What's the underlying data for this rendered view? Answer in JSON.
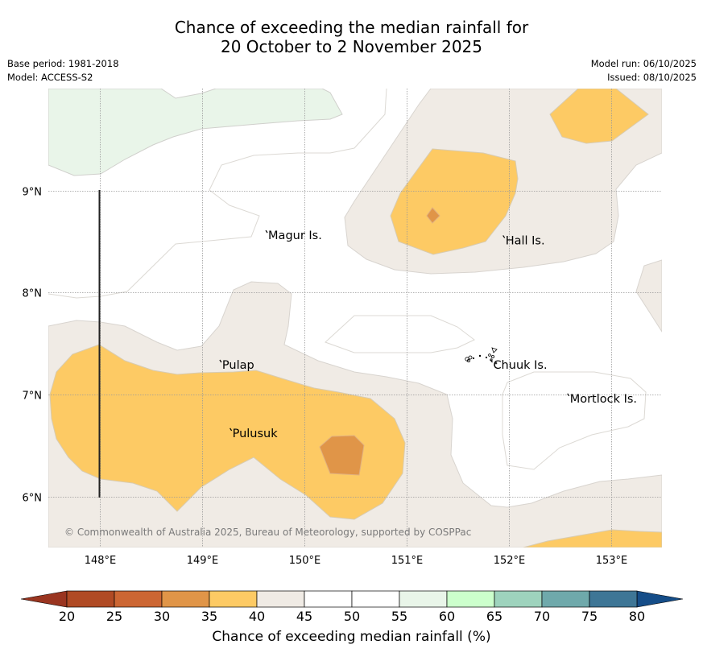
{
  "title": {
    "line1": "Chance of exceeding the median rainfall for",
    "line2": "20 October to 2 November 2025"
  },
  "meta": {
    "base_period": "Base period: 1981-2018",
    "model": "Model: ACCESS-S2",
    "model_run": "Model run: 06/10/2025",
    "issued": "Issued: 08/10/2025"
  },
  "map": {
    "lon_range": [
      147.5,
      153.5
    ],
    "lat_range": [
      5.5,
      10.0
    ],
    "lon_ticks": [
      "148°E",
      "149°E",
      "150°E",
      "151°E",
      "152°E",
      "153°E"
    ],
    "lat_ticks": [
      "9°N",
      "8°N",
      "7°N",
      "6°N"
    ],
    "places": [
      {
        "name": "Magur Is.",
        "lon": 149.65,
        "lat": 8.57
      },
      {
        "name": "Hall Is.",
        "lon": 151.97,
        "lat": 8.52
      },
      {
        "name": "Pulap",
        "lon": 149.2,
        "lat": 7.3
      },
      {
        "name": "Pulusuk",
        "lon": 149.3,
        "lat": 6.63
      },
      {
        "name": "Chuuk Is.",
        "lon": 151.85,
        "lat": 7.3
      },
      {
        "name": "Mortlock Is.",
        "lon": 152.6,
        "lat": 6.97
      }
    ],
    "copyright": "© Commonwealth of Australia 2025, Bureau of Meteorology, supported by COSPPac"
  },
  "colorbar": {
    "title": "Chance of exceeding median rainfall (%)",
    "ticks": [
      "20",
      "25",
      "30",
      "35",
      "40",
      "45",
      "50",
      "55",
      "60",
      "65",
      "70",
      "75",
      "80"
    ],
    "under_color": "#9a3520",
    "over_color": "#154d88",
    "colors": [
      "#b04a24",
      "#cc6633",
      "#e09548",
      "#fdca64",
      "#f0ebe5",
      "#ffffff",
      "#ffffff",
      "#e9f5e9",
      "#ccffcc",
      "#9ed3bd",
      "#6fa9ab",
      "#3e7696"
    ]
  },
  "legend_colors": {
    "c30_35": "#e09548",
    "c35_40": "#fdca64",
    "c40_45": "#f0ebe5",
    "c55_60": "#e9f5e9"
  }
}
